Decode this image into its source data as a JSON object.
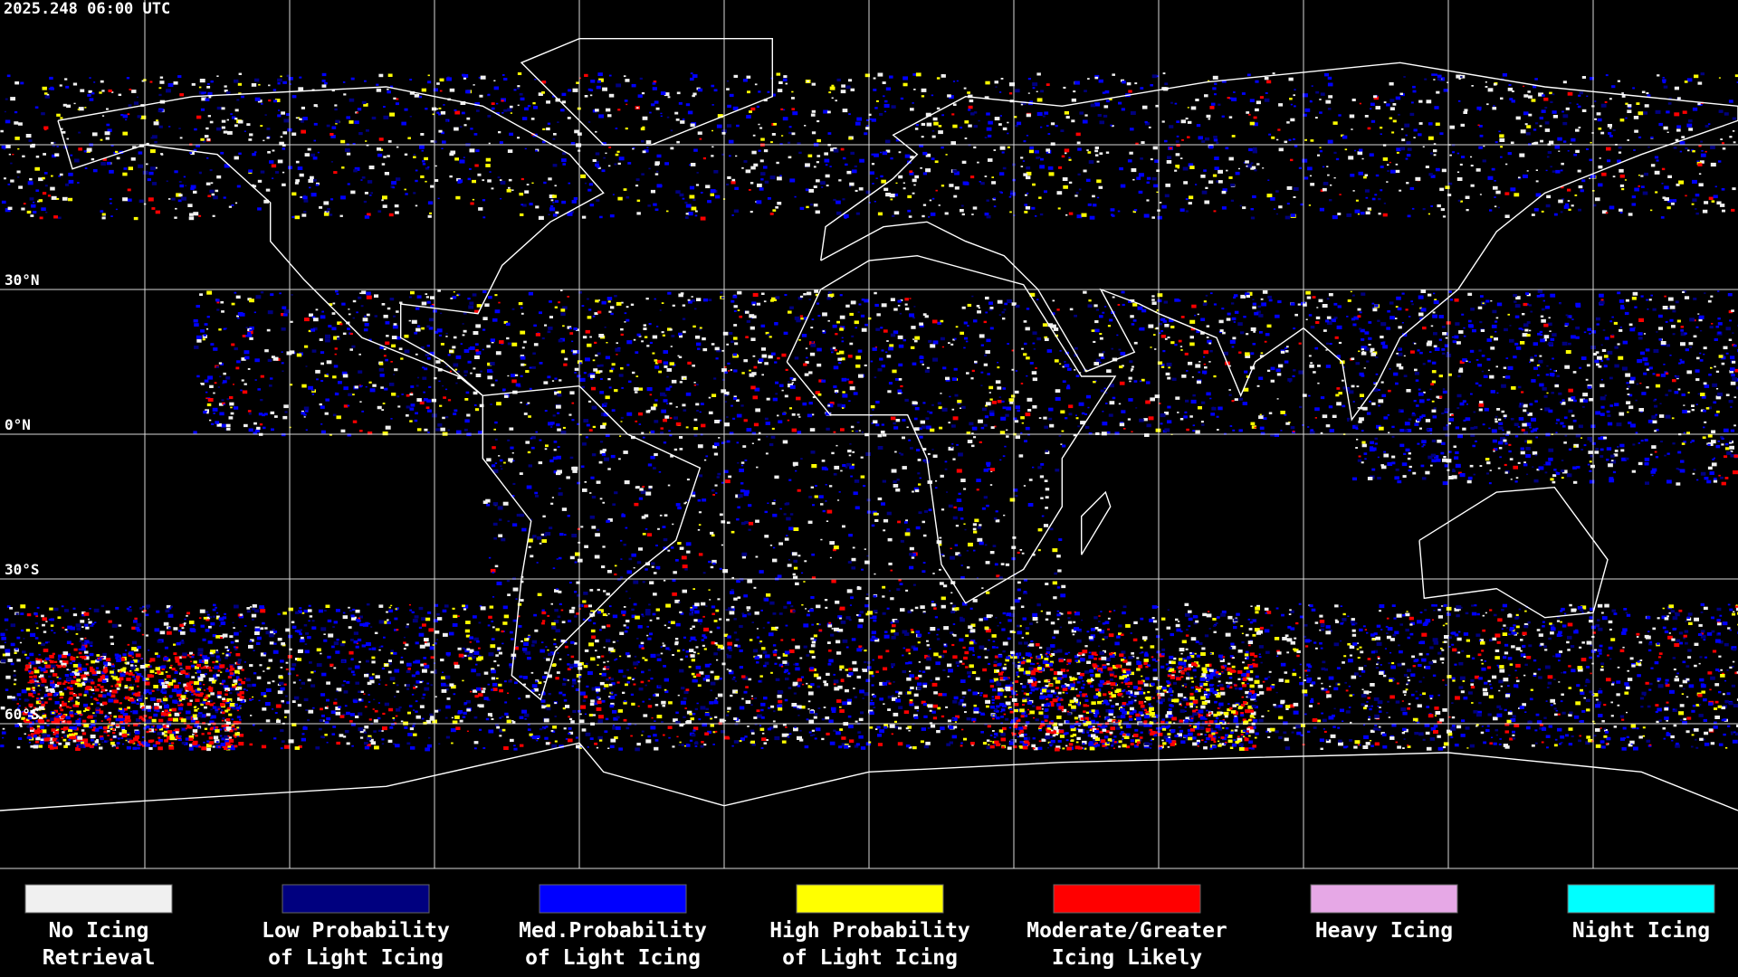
{
  "header": {
    "timestamp": "2025.248 06:00 UTC"
  },
  "map": {
    "latitude_labels": [
      "30°N",
      "0°N",
      "30°S",
      "60°S"
    ]
  },
  "legend": [
    {
      "color": "#f0f0f0",
      "label": [
        "No Icing",
        "Retrieval"
      ]
    },
    {
      "color": "#00007f",
      "label": [
        "Low Probability",
        "of Light Icing"
      ]
    },
    {
      "color": "#0000ff",
      "label": [
        "Med.Probability",
        "of Light Icing"
      ]
    },
    {
      "color": "#ffff00",
      "label": [
        "High Probability",
        "of Light Icing"
      ]
    },
    {
      "color": "#ff0000",
      "label": [
        "Moderate/Greater",
        "Icing Likely"
      ]
    },
    {
      "color": "#e6a8e6",
      "label": [
        "Heavy Icing"
      ]
    },
    {
      "color": "#00ffff",
      "label": [
        "Night Icing"
      ]
    }
  ]
}
